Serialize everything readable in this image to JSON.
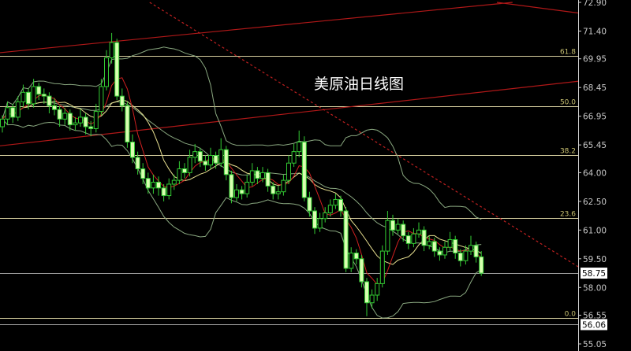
{
  "chart_data": {
    "type": "candlestick",
    "title": "美原油日线图",
    "ylim": [
      55.05,
      72.9
    ],
    "y_ticks": [
      72.9,
      71.4,
      69.95,
      68.45,
      66.95,
      65.45,
      64.0,
      62.5,
      61.0,
      59.5,
      58.0,
      56.55,
      55.05
    ],
    "y_tick_labels": [
      "72.90",
      "71.40",
      "69.95",
      "68.45",
      "66.95",
      "65.45",
      "64.00",
      "62.50",
      "61.00",
      "59.50",
      "58.00",
      "56.55",
      "55.05"
    ],
    "price_markers": [
      {
        "value": 58.75,
        "label": "58.75"
      },
      {
        "value": 56.06,
        "label": "56.06"
      }
    ],
    "fib_levels": [
      {
        "label": "61.8",
        "price": 70.1
      },
      {
        "label": "50.0",
        "price": 67.47
      },
      {
        "label": "38.2",
        "price": 64.92
      },
      {
        "label": "23.6",
        "price": 61.63
      },
      {
        "label": "0.0",
        "price": 56.4
      }
    ],
    "trend_lines": [
      {
        "style": "solid",
        "color": "#b01818",
        "from": [
          -0.5,
          70.27
        ],
        "to": [
          98,
          72.9
        ]
      },
      {
        "style": "solid",
        "color": "#b01818",
        "from": [
          95,
          72.9
        ],
        "to": [
          114.7,
          72.2
        ]
      },
      {
        "style": "solid",
        "color": "#b01818",
        "from": [
          -0.5,
          65.4
        ],
        "to": [
          114.7,
          68.9
        ]
      },
      {
        "style": "dashed",
        "color": "#c02020",
        "from": [
          28.3,
          72.9
        ],
        "to": [
          114.7,
          58.4
        ]
      }
    ],
    "indicators": {
      "ma_fast": 5,
      "ma_slow": 10,
      "bollinger": 20
    },
    "colors": {
      "up": "#33cc33",
      "down_fill": "#d8ffb0",
      "ma_fast": "#d02020",
      "ma_slow": "#e8e090",
      "bollinger": "#8aa880",
      "fib": "#d8d0a0",
      "fib_label": "#c8c070",
      "axis_text": "#c8c8c8"
    },
    "ohlc": [
      [
        66.4,
        67.0,
        66.1,
        66.8
      ],
      [
        66.8,
        67.7,
        66.5,
        67.4
      ],
      [
        67.4,
        67.6,
        66.6,
        66.9
      ],
      [
        66.9,
        68.0,
        66.7,
        67.7
      ],
      [
        67.7,
        68.6,
        67.4,
        68.2
      ],
      [
        68.2,
        68.4,
        67.3,
        67.6
      ],
      [
        67.6,
        68.9,
        67.4,
        68.5
      ],
      [
        68.5,
        68.7,
        67.8,
        68.1
      ],
      [
        68.1,
        68.4,
        67.6,
        68.0
      ],
      [
        68.0,
        68.2,
        67.1,
        67.5
      ],
      [
        67.5,
        67.9,
        67.0,
        67.3
      ],
      [
        67.3,
        67.5,
        66.4,
        66.8
      ],
      [
        66.8,
        67.4,
        66.5,
        67.1
      ],
      [
        67.1,
        67.3,
        66.2,
        66.5
      ],
      [
        66.5,
        66.9,
        66.2,
        66.6
      ],
      [
        66.6,
        67.3,
        66.4,
        66.9
      ],
      [
        66.9,
        67.1,
        66.0,
        66.4
      ],
      [
        66.4,
        66.7,
        65.9,
        66.3
      ],
      [
        66.3,
        67.6,
        66.1,
        67.2
      ],
      [
        67.2,
        68.9,
        67.0,
        68.5
      ],
      [
        68.5,
        70.4,
        68.3,
        70.0
      ],
      [
        70.0,
        71.3,
        69.7,
        70.8
      ],
      [
        70.8,
        71.0,
        67.8,
        68.0
      ],
      [
        68.0,
        68.4,
        67.2,
        67.5
      ],
      [
        67.5,
        67.7,
        65.3,
        65.6
      ],
      [
        65.6,
        66.0,
        64.5,
        64.8
      ],
      [
        64.8,
        65.1,
        63.9,
        64.2
      ],
      [
        64.2,
        64.5,
        63.4,
        63.7
      ],
      [
        63.7,
        64.0,
        62.9,
        63.2
      ],
      [
        63.2,
        63.9,
        62.9,
        63.5
      ],
      [
        63.5,
        63.8,
        62.8,
        63.2
      ],
      [
        63.2,
        63.4,
        62.5,
        62.8
      ],
      [
        62.8,
        63.7,
        62.6,
        63.4
      ],
      [
        63.4,
        63.9,
        63.1,
        63.6
      ],
      [
        63.6,
        64.6,
        63.4,
        64.2
      ],
      [
        64.2,
        64.5,
        63.7,
        64.0
      ],
      [
        64.0,
        65.2,
        63.8,
        64.8
      ],
      [
        64.8,
        65.5,
        64.5,
        65.1
      ],
      [
        65.1,
        65.3,
        64.3,
        64.6
      ],
      [
        64.6,
        64.9,
        64.1,
        64.4
      ],
      [
        64.4,
        65.3,
        64.2,
        64.9
      ],
      [
        64.9,
        65.1,
        64.2,
        64.5
      ],
      [
        64.5,
        65.8,
        64.3,
        65.2
      ],
      [
        65.2,
        65.4,
        63.6,
        63.9
      ],
      [
        63.9,
        64.1,
        62.4,
        62.7
      ],
      [
        62.7,
        63.4,
        62.5,
        63.1
      ],
      [
        63.1,
        63.3,
        62.6,
        62.9
      ],
      [
        62.9,
        63.9,
        62.7,
        63.5
      ],
      [
        63.5,
        64.5,
        63.3,
        64.1
      ],
      [
        64.1,
        64.3,
        63.4,
        63.7
      ],
      [
        63.7,
        64.3,
        63.5,
        64.0
      ],
      [
        64.0,
        64.2,
        63.0,
        63.3
      ],
      [
        63.3,
        63.5,
        62.6,
        62.9
      ],
      [
        62.9,
        63.3,
        62.6,
        63.0
      ],
      [
        63.0,
        63.9,
        62.8,
        63.6
      ],
      [
        63.6,
        64.9,
        63.4,
        64.5
      ],
      [
        64.5,
        65.5,
        64.3,
        65.1
      ],
      [
        65.1,
        66.2,
        64.8,
        65.6
      ],
      [
        65.6,
        65.9,
        62.5,
        62.7
      ],
      [
        62.7,
        63.0,
        61.7,
        62.0
      ],
      [
        62.0,
        62.2,
        60.8,
        61.1
      ],
      [
        61.1,
        61.9,
        60.9,
        61.6
      ],
      [
        61.6,
        62.2,
        61.4,
        61.9
      ],
      [
        61.9,
        62.6,
        61.7,
        62.3
      ],
      [
        62.3,
        62.9,
        62.1,
        62.6
      ],
      [
        62.6,
        62.8,
        61.7,
        62.0
      ],
      [
        62.0,
        62.2,
        58.8,
        59.0
      ],
      [
        59.0,
        60.1,
        58.8,
        59.8
      ],
      [
        59.8,
        60.0,
        59.2,
        59.5
      ],
      [
        59.5,
        59.7,
        58.0,
        58.3
      ],
      [
        58.3,
        58.5,
        56.5,
        57.2
      ],
      [
        57.2,
        57.9,
        56.9,
        57.6
      ],
      [
        57.6,
        58.5,
        57.3,
        58.2
      ],
      [
        58.2,
        60.2,
        58.0,
        59.9
      ],
      [
        59.9,
        62.0,
        59.7,
        61.5
      ],
      [
        61.5,
        61.8,
        60.7,
        61.0
      ],
      [
        61.0,
        61.6,
        60.8,
        61.3
      ],
      [
        61.3,
        61.5,
        60.4,
        60.7
      ],
      [
        60.7,
        60.9,
        60.0,
        60.3
      ],
      [
        60.3,
        61.1,
        60.1,
        60.8
      ],
      [
        60.8,
        61.4,
        60.6,
        61.0
      ],
      [
        61.0,
        61.2,
        59.9,
        60.2
      ],
      [
        60.2,
        60.7,
        60.0,
        60.4
      ],
      [
        60.4,
        60.6,
        59.6,
        59.9
      ],
      [
        59.9,
        60.1,
        59.4,
        59.7
      ],
      [
        59.7,
        60.4,
        59.5,
        60.1
      ],
      [
        60.1,
        60.9,
        59.9,
        60.5
      ],
      [
        60.5,
        60.7,
        59.5,
        59.8
      ],
      [
        59.8,
        60.0,
        59.1,
        59.4
      ],
      [
        59.4,
        60.2,
        59.2,
        59.9
      ],
      [
        59.9,
        60.7,
        59.7,
        60.2
      ],
      [
        60.2,
        60.4,
        59.3,
        59.6
      ],
      [
        59.6,
        59.9,
        58.6,
        58.75
      ]
    ]
  }
}
